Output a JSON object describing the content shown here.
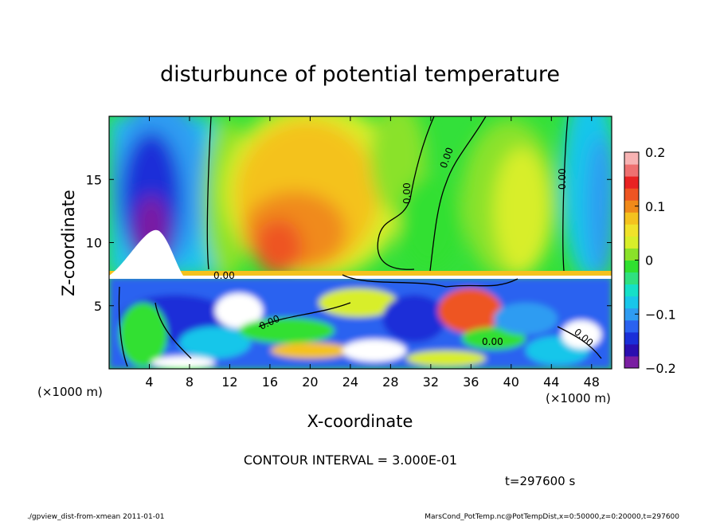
{
  "chart_data": {
    "type": "heatmap",
    "title": "disturbunce of potential temperature",
    "xlabel": "X-coordinate",
    "ylabel": "Z-coordinate",
    "x_unit_left": "(×1000 m)",
    "x_unit_right": "(×1000 m)",
    "xlim": [
      0,
      50
    ],
    "ylim": [
      0,
      20
    ],
    "xticks": [
      "4",
      "8",
      "12",
      "16",
      "20",
      "24",
      "28",
      "32",
      "36",
      "40",
      "44",
      "48"
    ],
    "yticks": [
      "5",
      "10",
      "15"
    ],
    "colorbar": {
      "range": [
        -0.2,
        0.2
      ],
      "tick_labels": [
        "0.2",
        "0.1",
        "0",
        "−0.1",
        "−0.2"
      ],
      "colors": [
        "#7a1fa2",
        "#2a0fb0",
        "#1a2fd8",
        "#2a62f0",
        "#2f9cf2",
        "#19c6ea",
        "#15e0c8",
        "#2fe080",
        "#30e030",
        "#8ae22a",
        "#d8ee2a",
        "#f0e22a",
        "#f4c21e",
        "#f08a1a",
        "#ee5522",
        "#e82222",
        "#ee7070",
        "#f7b3b3"
      ]
    },
    "contour_labels": [
      "0.00",
      "0.00",
      "0.00",
      "0.00",
      "0.00",
      "0.00",
      "0.00"
    ],
    "contour_interval": "CONTOUR INTERVAL = 3.000E-01",
    "time": "t=297600 s"
  },
  "footer": {
    "left": "./gpview_dist-from-xmean 2011-01-01",
    "right": "MarsCond_PotTemp.nc@PotTempDist,x=0:50000,z=0:20000,t=297600"
  }
}
